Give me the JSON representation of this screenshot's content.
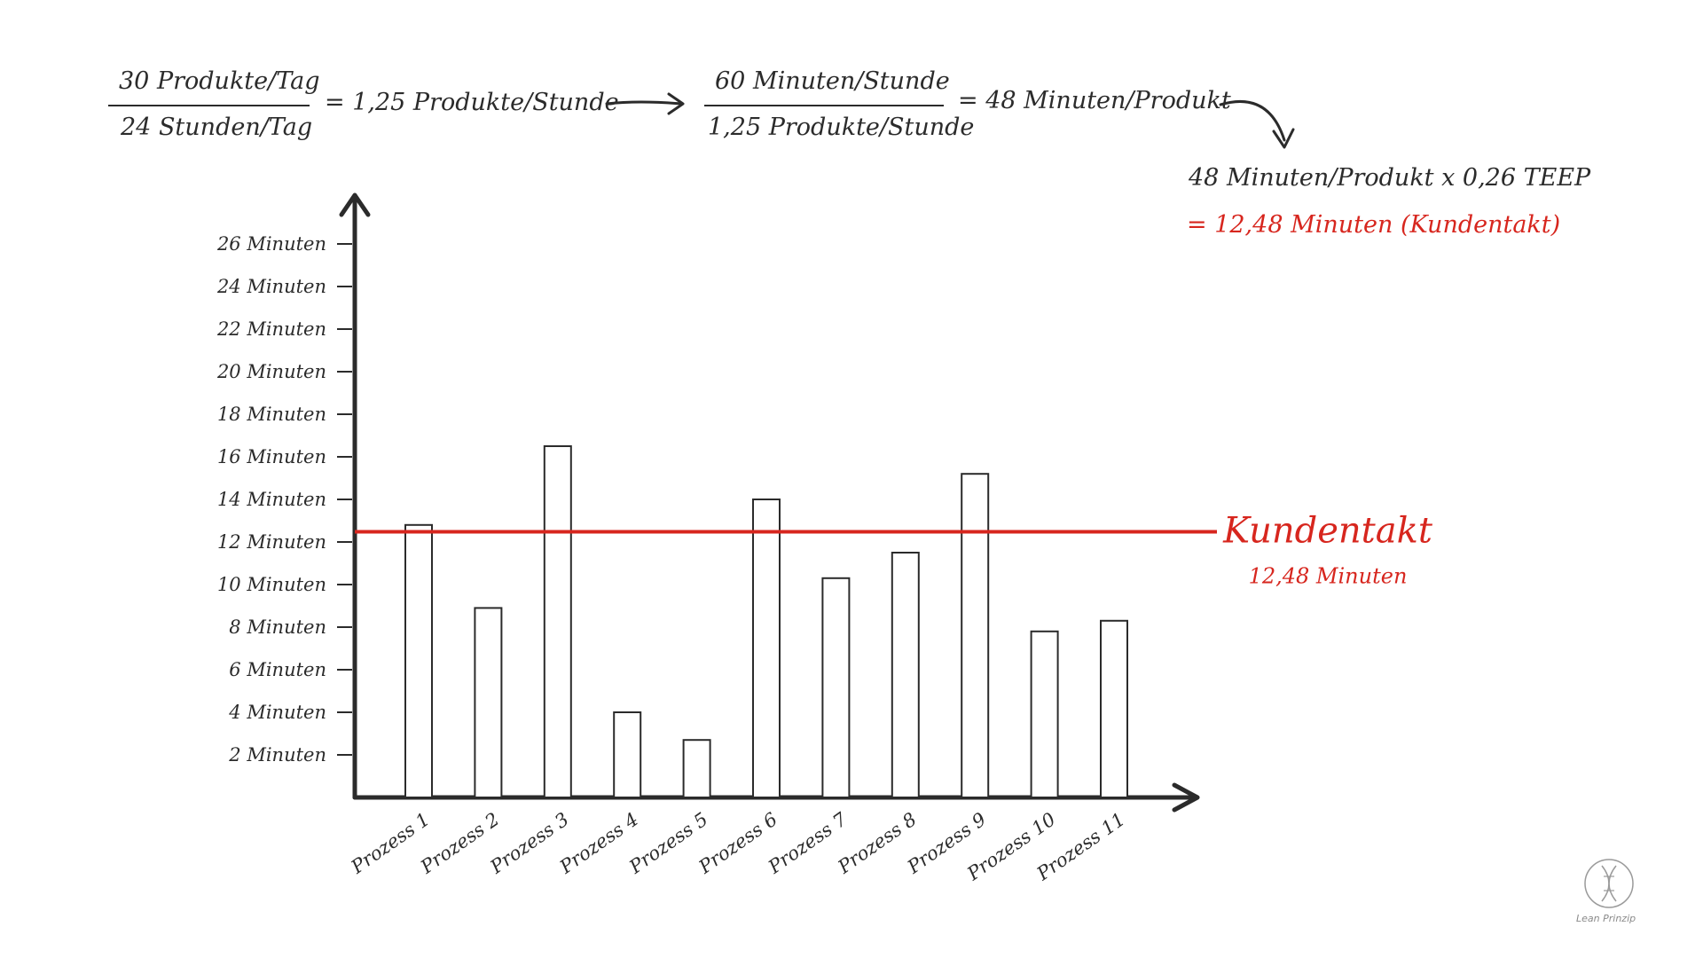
{
  "formula": {
    "frac1_num": "30 Produkte/Tag",
    "frac1_den": "24 Stunden/Tag",
    "frac1_result": "= 1,25 Produkte/Stunde",
    "frac2_num": "60 Minuten/Stunde",
    "frac2_den": "1,25 Produkte/Stunde",
    "frac2_result": "= 48 Minuten/Produkt",
    "teep_line": "48 Minuten/Produkt  x  0,26 TEEP",
    "result_line": "= 12,48 Minuten (Kundentakt)"
  },
  "takt": {
    "label": "Kundentakt",
    "value_label": "12,48 Minuten",
    "value": 12.48,
    "color": "#d7261e"
  },
  "logo": {
    "text": "Lean Prinzip"
  },
  "chart_data": {
    "type": "bar",
    "categories": [
      "Prozess 1",
      "Prozess 2",
      "Prozess 3",
      "Prozess 4",
      "Prozess 5",
      "Prozess 6",
      "Prozess 7",
      "Prozess 8",
      "Prozess 9",
      "Prozess 10",
      "Prozess 11"
    ],
    "values": [
      12.8,
      8.9,
      16.5,
      4.0,
      2.7,
      14.0,
      10.3,
      11.5,
      15.2,
      7.8,
      8.3
    ],
    "yticks": [
      2,
      4,
      6,
      8,
      10,
      12,
      14,
      16,
      18,
      20,
      22,
      24,
      26
    ],
    "ytick_labels": [
      "2 Minuten",
      "4 Minuten",
      "6 Minuten",
      "8 Minuten",
      "10 Minuten",
      "12 Minuten",
      "14 Minuten",
      "16 Minuten",
      "18 Minuten",
      "20 Minuten",
      "22 Minuten",
      "24 Minuten",
      "26 Minuten"
    ],
    "ylim": [
      0,
      28
    ],
    "reference_line": {
      "name": "Kundentakt",
      "value": 12.48
    },
    "bar_fill": "#ffffff",
    "bar_stroke": "#2b2b2b",
    "grid": false
  }
}
